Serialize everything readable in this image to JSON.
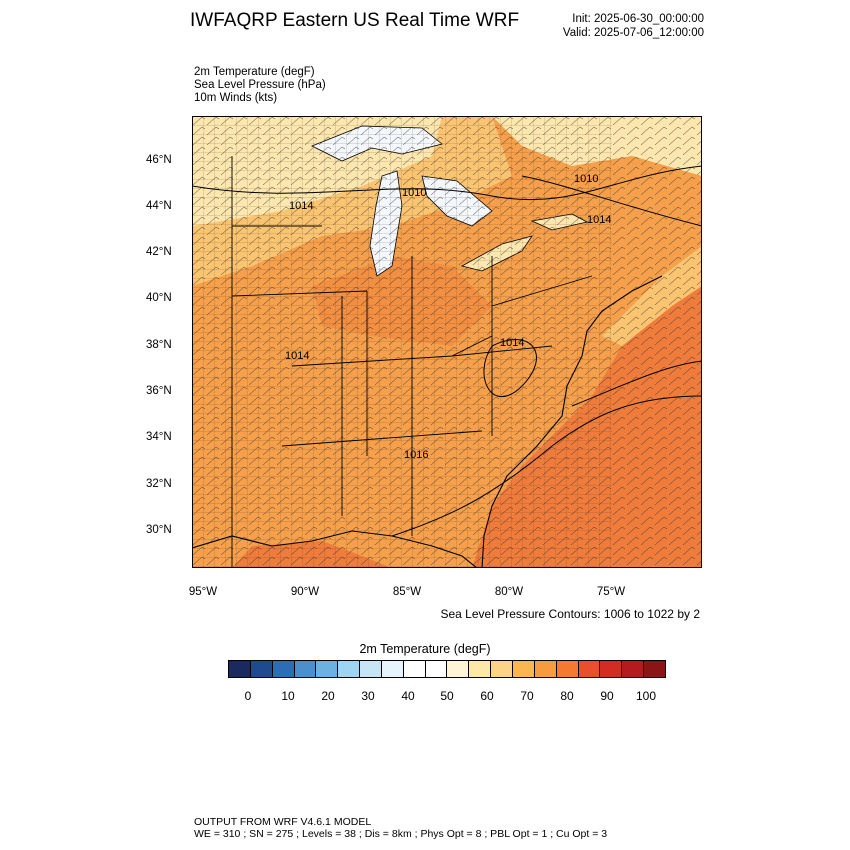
{
  "header": {
    "title": "IWFAQRP Eastern US Real Time WRF",
    "init": "Init: 2025-06-30_00:00:00",
    "valid": "Valid: 2025-07-06_12:00:00"
  },
  "fields": [
    {
      "label": "2m Temperature   (degF)"
    },
    {
      "label": "Sea Level Pressure   (hPa)"
    },
    {
      "label": "10m Winds   (kts)"
    }
  ],
  "map": {
    "lon_ticks": [
      "95°W",
      "90°W",
      "85°W",
      "80°W",
      "75°W"
    ],
    "lat_ticks": [
      "46°N",
      "44°N",
      "42°N",
      "40°N",
      "38°N",
      "36°N",
      "34°N",
      "32°N",
      "30°N"
    ],
    "isobar_labels": [
      "1010",
      "1010",
      "1014",
      "1014",
      "1014",
      "1014",
      "1016"
    ],
    "colors": {
      "land_hot": "#f6a04b",
      "land_warm": "#fbc471",
      "land_mild": "#fde7ae",
      "ocean_warm": "#f07c3c",
      "lake_cool": "#f4f8fc"
    }
  },
  "contour_note": "Sea Level Pressure Contours: 1006 to 1022 by 2",
  "colorbar": {
    "title": "2m Temperature  (degF)",
    "colors": [
      "#1a2a5e",
      "#1f4a8f",
      "#2d6db5",
      "#4a90cc",
      "#6bb2e0",
      "#9fd4f2",
      "#c6e6f7",
      "#e6f4fc",
      "#ffffff",
      "#ffffff",
      "#fff5d6",
      "#fde8aa",
      "#fdd487",
      "#fbb652",
      "#f79b3f",
      "#f47a32",
      "#e94f2c",
      "#d42b24",
      "#b51a1f",
      "#8b1515"
    ],
    "ticks": [
      "0",
      "10",
      "20",
      "30",
      "40",
      "50",
      "60",
      "70",
      "80",
      "90",
      "100"
    ]
  },
  "footer": {
    "line1": "OUTPUT FROM WRF V4.6.1 MODEL",
    "line2": "WE = 310 ; SN = 275 ; Levels = 38 ; Dis = 8km ; Phys Opt = 8 ; PBL Opt = 1 ; Cu Opt = 3"
  }
}
